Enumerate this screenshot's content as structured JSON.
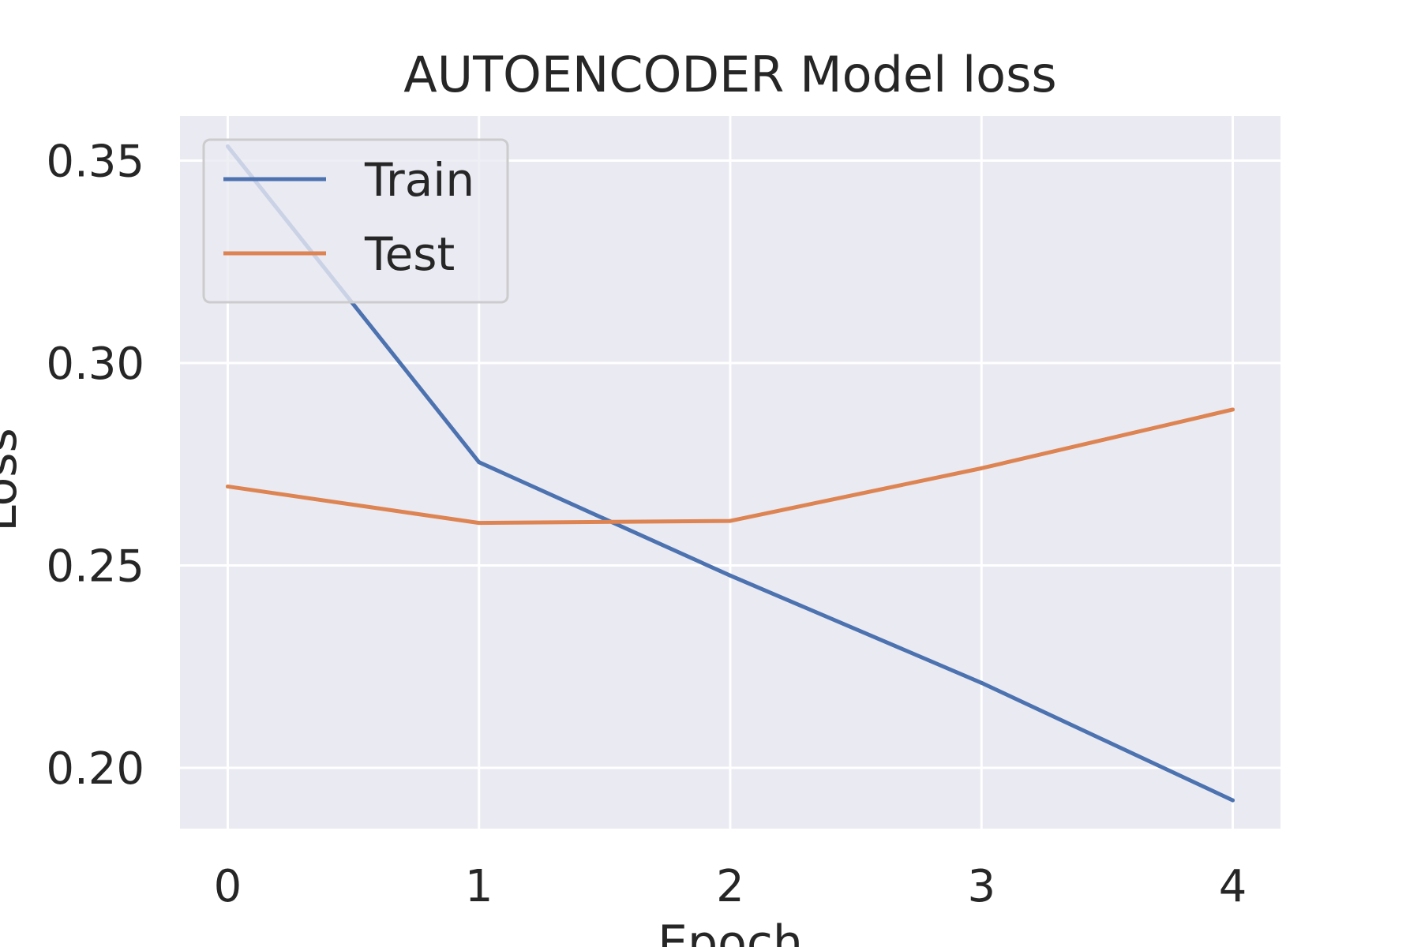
{
  "chart_data": {
    "type": "line",
    "title": "AUTOENCODER Model loss",
    "xlabel": "Epoch",
    "ylabel": "Loss",
    "x": [
      0,
      1,
      2,
      3,
      4
    ],
    "xticks": [
      "0",
      "1",
      "2",
      "3",
      "4"
    ],
    "yticks": [
      "0.20",
      "0.25",
      "0.30",
      "0.35"
    ],
    "ytick_values": [
      0.2,
      0.25,
      0.3,
      0.35
    ],
    "xlim": [
      -0.19,
      4.19
    ],
    "ylim": [
      0.185,
      0.361
    ],
    "grid": true,
    "legend_position": "upper-left",
    "colors": {
      "plot_background": "#eaeaf2",
      "grid": "#ffffff",
      "text": "#262626"
    },
    "series": [
      {
        "name": "Train",
        "color": "#4c72b0",
        "values": [
          0.3535,
          0.2755,
          0.2475,
          0.221,
          0.192
        ]
      },
      {
        "name": "Test",
        "color": "#dd8452",
        "values": [
          0.2695,
          0.2605,
          0.261,
          0.274,
          0.2885
        ]
      }
    ]
  }
}
